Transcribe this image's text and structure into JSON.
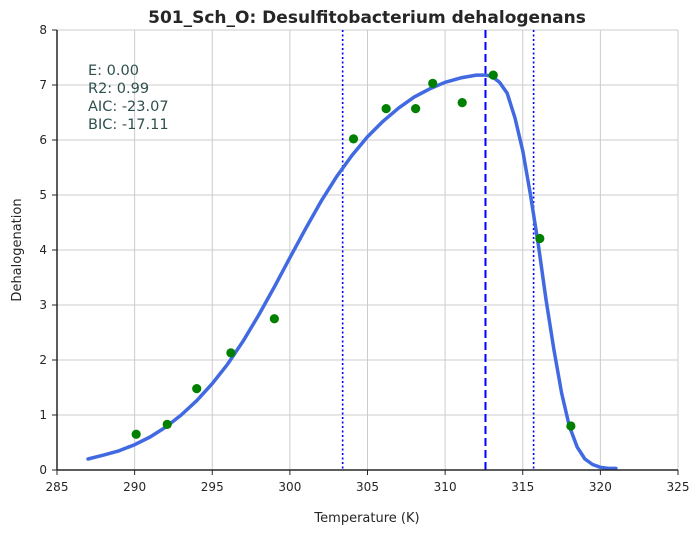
{
  "chart_data": {
    "type": "scatter",
    "title": "501_Sch_O: Desulfitobacterium dehalogenans",
    "xlabel": "Temperature (K)",
    "ylabel": "Dehalogenation",
    "xlim": [
      285,
      325
    ],
    "ylim": [
      0,
      8
    ],
    "xticks": [
      285,
      290,
      295,
      300,
      305,
      310,
      315,
      320,
      325
    ],
    "yticks": [
      0,
      1,
      2,
      3,
      4,
      5,
      6,
      7,
      8
    ],
    "grid": true,
    "legend": "none",
    "annotations": [
      "E:  0.00",
      "R2:  0.99",
      "AIC: -23.07",
      "BIC: -17.11"
    ],
    "series": [
      {
        "kind": "points",
        "color": "#008000",
        "x": [
          290.1,
          292.1,
          294.0,
          296.2,
          299.0,
          304.1,
          306.2,
          308.1,
          309.2,
          311.1,
          313.1,
          316.1,
          318.1
        ],
        "y": [
          0.65,
          0.83,
          1.48,
          2.13,
          2.75,
          6.02,
          6.57,
          6.57,
          7.03,
          6.68,
          7.18,
          4.21,
          0.8
        ]
      },
      {
        "kind": "fit-curve",
        "color": "#4169e1",
        "x": [
          287.0,
          288.0,
          289.0,
          290.0,
          291.0,
          292.0,
          293.0,
          294.0,
          295.0,
          296.0,
          297.0,
          298.0,
          299.0,
          300.0,
          301.0,
          302.0,
          303.0,
          304.0,
          305.0,
          306.0,
          307.0,
          308.0,
          309.0,
          310.0,
          311.0,
          312.0,
          312.6,
          313.0,
          313.5,
          314.0,
          314.5,
          315.0,
          315.5,
          316.0,
          316.5,
          317.0,
          317.5,
          318.0,
          318.5,
          319.0,
          319.5,
          320.0,
          320.5,
          321.0
        ],
        "y": [
          0.2,
          0.27,
          0.35,
          0.46,
          0.6,
          0.78,
          1.0,
          1.26,
          1.57,
          1.93,
          2.35,
          2.82,
          3.33,
          3.86,
          4.38,
          4.88,
          5.33,
          5.72,
          6.06,
          6.34,
          6.58,
          6.78,
          6.93,
          7.05,
          7.13,
          7.18,
          7.18,
          7.16,
          7.05,
          6.85,
          6.4,
          5.8,
          5.0,
          4.1,
          3.1,
          2.2,
          1.4,
          0.8,
          0.42,
          0.2,
          0.1,
          0.05,
          0.03,
          0.03
        ]
      }
    ],
    "vlines": [
      {
        "x": 312.6,
        "style": "dashed",
        "color": "#0000ff"
      },
      {
        "x": 303.4,
        "style": "dotted",
        "color": "#0000ff"
      },
      {
        "x": 315.7,
        "style": "dotted",
        "color": "#0000ff"
      }
    ]
  }
}
